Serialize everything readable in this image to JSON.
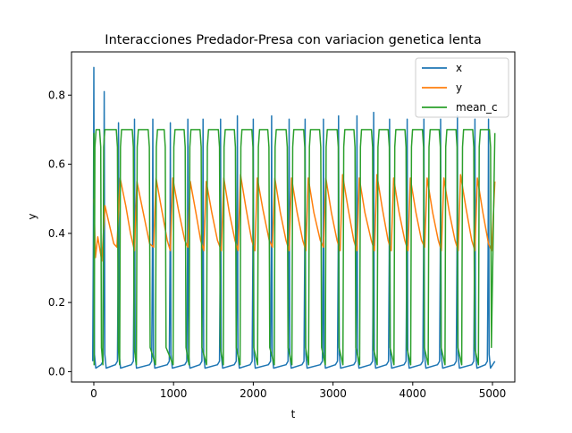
{
  "chart_data": {
    "type": "line",
    "title": "Interacciones Predador-Presa con variacion genetica lenta",
    "xlabel": "t",
    "ylabel": "y",
    "xlim": [
      -280,
      5280
    ],
    "ylim": [
      -0.03,
      0.925
    ],
    "xticks": [
      0,
      1000,
      2000,
      3000,
      4000,
      5000
    ],
    "xtick_labels": [
      "0",
      "1000",
      "2000",
      "3000",
      "4000",
      "5000"
    ],
    "yticks": [
      0.0,
      0.2,
      0.4,
      0.6,
      0.8
    ],
    "ytick_labels": [
      "0.0",
      "0.2",
      "0.4",
      "0.6",
      "0.8"
    ],
    "grid": false,
    "legend_position": "top-right",
    "series": [
      {
        "name": "x",
        "color": "#1f77b4",
        "peaks": [
          [
            0,
            0.88
          ],
          [
            130,
            0.81
          ],
          [
            310,
            0.72
          ],
          [
            510,
            0.73
          ],
          [
            740,
            0.73
          ],
          [
            960,
            0.72
          ],
          [
            1180,
            0.73
          ],
          [
            1370,
            0.73
          ],
          [
            1590,
            0.73
          ],
          [
            1800,
            0.74
          ],
          [
            2000,
            0.73
          ],
          [
            2230,
            0.74
          ],
          [
            2450,
            0.73
          ],
          [
            2650,
            0.73
          ],
          [
            2880,
            0.73
          ],
          [
            3070,
            0.74
          ],
          [
            3300,
            0.74
          ],
          [
            3510,
            0.75
          ],
          [
            3710,
            0.73
          ],
          [
            3930,
            0.73
          ],
          [
            4140,
            0.73
          ],
          [
            4350,
            0.73
          ],
          [
            4560,
            0.74
          ],
          [
            4780,
            0.73
          ],
          [
            4950,
            0.73
          ]
        ],
        "baseline": 0.01,
        "end": [
          5030,
          0.03
        ]
      },
      {
        "name": "y",
        "color": "#ff7f0e",
        "points": [
          [
            0,
            0.5
          ],
          [
            20,
            0.33
          ],
          [
            50,
            0.39
          ],
          [
            100,
            0.32
          ],
          [
            140,
            0.48
          ],
          [
            200,
            0.42
          ],
          [
            250,
            0.37
          ],
          [
            290,
            0.36
          ],
          [
            330,
            0.56
          ],
          [
            400,
            0.48
          ],
          [
            460,
            0.4
          ],
          [
            510,
            0.35
          ],
          [
            540,
            0.55
          ],
          [
            620,
            0.46
          ],
          [
            700,
            0.37
          ],
          [
            750,
            0.36
          ],
          [
            780,
            0.56
          ],
          [
            850,
            0.47
          ],
          [
            920,
            0.38
          ],
          [
            960,
            0.35
          ],
          [
            990,
            0.56
          ],
          [
            1060,
            0.47
          ],
          [
            1140,
            0.38
          ],
          [
            1180,
            0.36
          ],
          [
            1210,
            0.55
          ],
          [
            1280,
            0.46
          ],
          [
            1340,
            0.38
          ],
          [
            1380,
            0.35
          ],
          [
            1410,
            0.55
          ],
          [
            1480,
            0.46
          ],
          [
            1550,
            0.38
          ],
          [
            1600,
            0.35
          ],
          [
            1630,
            0.56
          ],
          [
            1700,
            0.46
          ],
          [
            1770,
            0.38
          ],
          [
            1810,
            0.35
          ],
          [
            1840,
            0.57
          ],
          [
            1910,
            0.47
          ],
          [
            1980,
            0.38
          ],
          [
            2020,
            0.35
          ],
          [
            2050,
            0.56
          ],
          [
            2120,
            0.47
          ],
          [
            2200,
            0.38
          ],
          [
            2240,
            0.36
          ],
          [
            2270,
            0.56
          ],
          [
            2340,
            0.46
          ],
          [
            2410,
            0.38
          ],
          [
            2450,
            0.35
          ],
          [
            2480,
            0.56
          ],
          [
            2550,
            0.46
          ],
          [
            2620,
            0.38
          ],
          [
            2660,
            0.35
          ],
          [
            2690,
            0.56
          ],
          [
            2760,
            0.46
          ],
          [
            2840,
            0.38
          ],
          [
            2880,
            0.36
          ],
          [
            2910,
            0.56
          ],
          [
            2980,
            0.46
          ],
          [
            3050,
            0.38
          ],
          [
            3090,
            0.35
          ],
          [
            3120,
            0.57
          ],
          [
            3190,
            0.47
          ],
          [
            3260,
            0.38
          ],
          [
            3300,
            0.35
          ],
          [
            3330,
            0.56
          ],
          [
            3400,
            0.46
          ],
          [
            3480,
            0.38
          ],
          [
            3520,
            0.35
          ],
          [
            3550,
            0.57
          ],
          [
            3620,
            0.47
          ],
          [
            3690,
            0.38
          ],
          [
            3730,
            0.35
          ],
          [
            3760,
            0.56
          ],
          [
            3830,
            0.46
          ],
          [
            3900,
            0.38
          ],
          [
            3940,
            0.35
          ],
          [
            3970,
            0.56
          ],
          [
            4040,
            0.46
          ],
          [
            4110,
            0.38
          ],
          [
            4150,
            0.36
          ],
          [
            4180,
            0.56
          ],
          [
            4250,
            0.46
          ],
          [
            4320,
            0.38
          ],
          [
            4360,
            0.35
          ],
          [
            4390,
            0.56
          ],
          [
            4460,
            0.46
          ],
          [
            4530,
            0.38
          ],
          [
            4570,
            0.35
          ],
          [
            4600,
            0.57
          ],
          [
            4670,
            0.47
          ],
          [
            4740,
            0.38
          ],
          [
            4780,
            0.35
          ],
          [
            4810,
            0.56
          ],
          [
            4880,
            0.46
          ],
          [
            4950,
            0.37
          ],
          [
            4990,
            0.35
          ],
          [
            5030,
            0.55
          ]
        ]
      },
      {
        "name": "mean_c",
        "color": "#2ca02c",
        "cycles": [
          [
            10,
            90
          ],
          [
            120,
            300
          ],
          [
            330,
            500
          ],
          [
            540,
            700
          ],
          [
            780,
            900
          ],
          [
            1000,
            1150
          ],
          [
            1200,
            1350
          ],
          [
            1420,
            1580
          ],
          [
            1630,
            1780
          ],
          [
            1840,
            2000
          ],
          [
            2060,
            2200
          ],
          [
            2270,
            2430
          ],
          [
            2490,
            2650
          ],
          [
            2700,
            2850
          ],
          [
            2910,
            3070
          ],
          [
            3130,
            3280
          ],
          [
            3340,
            3500
          ],
          [
            3560,
            3710
          ],
          [
            3770,
            3920
          ],
          [
            3980,
            4140
          ],
          [
            4200,
            4350
          ],
          [
            4410,
            4560
          ],
          [
            4620,
            4770
          ],
          [
            4830,
            4980
          ]
        ],
        "high": 0.7,
        "low": 0.02,
        "start": [
          0,
          0.69
        ],
        "end": [
          5030,
          0.69
        ]
      }
    ]
  }
}
